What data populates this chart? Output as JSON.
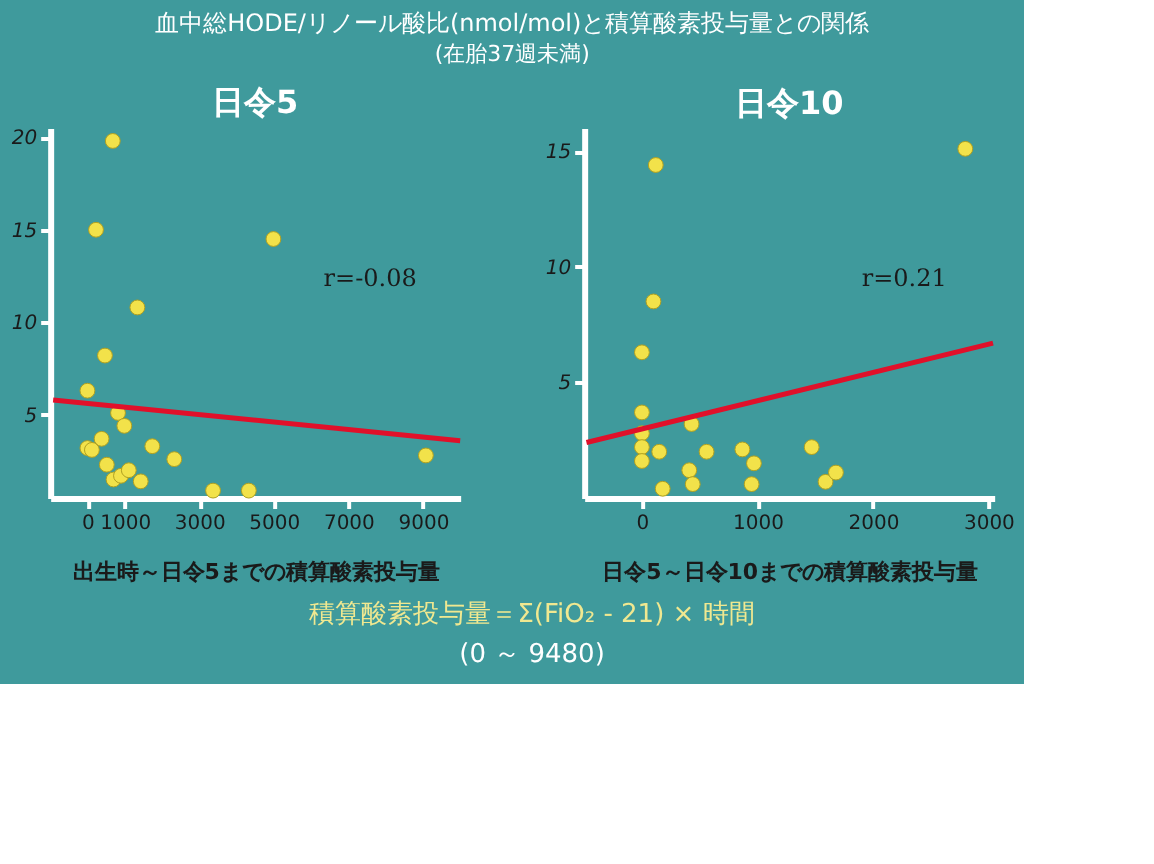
{
  "chart_data": [
    {
      "type": "scatter",
      "title": "日令5",
      "xlabel": "出生時～日令5までの積算酸素投与量",
      "xlim": [
        -1000,
        10000
      ],
      "xticks": [
        0,
        1000,
        3000,
        5000,
        7000,
        9000
      ],
      "ylim": [
        0.5,
        20.5
      ],
      "yticks": [
        5,
        10,
        15,
        20
      ],
      "grid": false,
      "series": [
        {
          "marker": "circle",
          "color": "#f2e24a",
          "x": [
            680,
            230,
            4990,
            1340,
            470,
            0,
            820,
            990,
            0,
            120,
            380,
            520,
            700,
            900,
            1110,
            1430,
            1740,
            2330,
            3370,
            4330,
            9080
          ],
          "values": [
            19.8,
            15.0,
            14.5,
            10.8,
            8.2,
            6.3,
            5.1,
            4.4,
            3.2,
            3.1,
            3.7,
            2.3,
            1.5,
            1.7,
            2.0,
            1.4,
            3.3,
            2.6,
            0.9,
            0.9,
            2.8
          ]
        },
        {
          "type": "line",
          "color": "#e0102a",
          "x": [
            -920,
            10000
          ],
          "values": [
            5.8,
            3.6
          ]
        }
      ],
      "annotations": [
        "r=-0.08"
      ]
    },
    {
      "type": "scatter",
      "title": "日令10",
      "xlabel": "日令5～日令10までの積算酸素投与量",
      "xlim": [
        -500,
        3050
      ],
      "xticks": [
        0,
        1000,
        2000,
        3000
      ],
      "ylim": [
        0,
        16
      ],
      "yticks": [
        5,
        10,
        15
      ],
      "grid": false,
      "series": [
        {
          "marker": "circle",
          "color": "#f2e24a",
          "x": [
            2800,
            120,
            100,
            0,
            0,
            0,
            0,
            0,
            150,
            180,
            430,
            410,
            440,
            560,
            870,
            970,
            950,
            1470,
            1590,
            1680
          ],
          "values": [
            15.1,
            14.4,
            8.5,
            6.3,
            3.7,
            2.8,
            2.2,
            1.6,
            2.0,
            0.4,
            3.2,
            1.2,
            0.6,
            2.0,
            2.1,
            1.5,
            0.6,
            2.2,
            0.7,
            1.1
          ]
        },
        {
          "type": "line",
          "color": "#e0102a",
          "x": [
            -480,
            3040
          ],
          "values": [
            2.4,
            6.7
          ]
        }
      ],
      "annotations": [
        "r=0.21"
      ]
    },
    {
      "type": "other",
      "title": "血中総HODE/リノール酸比(nmol/mol)と積算酸素投与量との関係",
      "subtitle": "(在胎37週未満)",
      "annotations": [
        "積算酸素投与量＝Σ(FiO₂ - 21) × 時間",
        "(0 ～ 9480)"
      ]
    }
  ]
}
